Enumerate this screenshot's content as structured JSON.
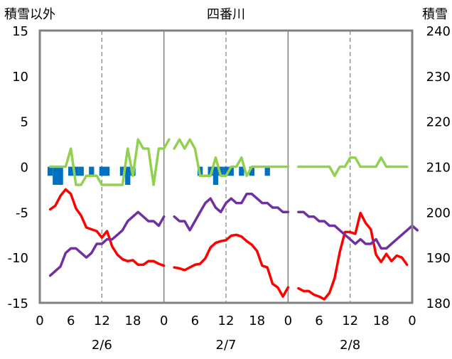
{
  "chart_data": {
    "type": "line",
    "title": "四番川",
    "left_axis_label": "積雪以外",
    "right_axis_label": "積雪",
    "left_ylim": [
      -15,
      15
    ],
    "left_ticks": [
      15,
      10,
      5,
      0,
      -5,
      -10,
      -15
    ],
    "right_ylim": [
      180,
      240
    ],
    "right_ticks": [
      240,
      230,
      220,
      210,
      200,
      190,
      180
    ],
    "x_ticks": [
      {
        "x": 0,
        "label": "0"
      },
      {
        "x": 6,
        "label": "6"
      },
      {
        "x": 12,
        "label": "12"
      },
      {
        "x": 18,
        "label": "18"
      },
      {
        "x": 24,
        "label": "0"
      },
      {
        "x": 30,
        "label": "6"
      },
      {
        "x": 36,
        "label": "12"
      },
      {
        "x": 42,
        "label": "18"
      },
      {
        "x": 48,
        "label": "0"
      },
      {
        "x": 54,
        "label": "6"
      },
      {
        "x": 60,
        "label": "12"
      },
      {
        "x": 66,
        "label": "18"
      },
      {
        "x": 72,
        "label": "0"
      }
    ],
    "date_labels": [
      {
        "x": 12,
        "label": "2/6"
      },
      {
        "x": 36,
        "label": "2/7"
      },
      {
        "x": 60,
        "label": "2/8"
      }
    ],
    "xlim": [
      0,
      72
    ],
    "day_boundaries": [
      24,
      48
    ],
    "grid": "dashed vertical at 12h",
    "series": [
      {
        "color": "#ff0000",
        "axis": "left",
        "segments": [
          [
            [
              2,
              -4.7
            ],
            [
              3,
              -4.3
            ],
            [
              4,
              -3.2
            ],
            [
              5,
              -2.5
            ],
            [
              6,
              -3.0
            ],
            [
              7,
              -4.6
            ],
            [
              8,
              -5.4
            ],
            [
              9,
              -6.7
            ],
            [
              10,
              -6.9
            ],
            [
              11,
              -7.1
            ],
            [
              12,
              -7.8
            ],
            [
              13,
              -7.1
            ],
            [
              14,
              -8.8
            ],
            [
              15,
              -9.7
            ],
            [
              16,
              -10.2
            ],
            [
              17,
              -10.4
            ],
            [
              18,
              -10.3
            ],
            [
              19,
              -10.8
            ],
            [
              20,
              -10.8
            ],
            [
              21,
              -10.4
            ],
            [
              22,
              -10.4
            ],
            [
              23,
              -10.7
            ],
            [
              24,
              -10.9
            ]
          ],
          [
            [
              26,
              -11.1
            ],
            [
              27,
              -11.2
            ],
            [
              28,
              -11.4
            ],
            [
              29,
              -11.1
            ],
            [
              30,
              -10.8
            ],
            [
              31,
              -10.7
            ],
            [
              32,
              -10.1
            ],
            [
              33,
              -8.9
            ],
            [
              34,
              -8.4
            ],
            [
              35,
              -8.2
            ],
            [
              36,
              -8.1
            ],
            [
              37,
              -7.6
            ],
            [
              38,
              -7.5
            ],
            [
              39,
              -7.7
            ],
            [
              40,
              -8.2
            ],
            [
              41,
              -8.6
            ],
            [
              42,
              -9.3
            ],
            [
              43,
              -10.9
            ],
            [
              44,
              -11.1
            ],
            [
              45,
              -12.9
            ],
            [
              46,
              -13.3
            ],
            [
              47,
              -14.3
            ],
            [
              48,
              -13.3
            ]
          ],
          [
            [
              50,
              -13.4
            ],
            [
              51,
              -13.7
            ],
            [
              52,
              -13.7
            ],
            [
              53,
              -14.1
            ],
            [
              54,
              -14.3
            ],
            [
              55,
              -14.6
            ],
            [
              56,
              -13.9
            ],
            [
              57,
              -12.3
            ],
            [
              58,
              -9.4
            ],
            [
              59,
              -7.2
            ],
            [
              60,
              -7.2
            ],
            [
              61,
              -7.4
            ],
            [
              62,
              -5.1
            ],
            [
              63,
              -6.2
            ],
            [
              64,
              -6.9
            ],
            [
              65,
              -9.7
            ],
            [
              66,
              -10.5
            ],
            [
              67,
              -9.6
            ],
            [
              68,
              -10.4
            ],
            [
              69,
              -9.8
            ],
            [
              70,
              -10.0
            ],
            [
              71,
              -10.8
            ]
          ]
        ]
      },
      {
        "color": "#92d050",
        "axis": "left",
        "segments": [
          [
            [
              2,
              0
            ],
            [
              3,
              0
            ],
            [
              4,
              0
            ],
            [
              5,
              0
            ],
            [
              6,
              2
            ],
            [
              7,
              -2
            ],
            [
              8,
              -2
            ],
            [
              9,
              -1
            ],
            [
              10,
              -1
            ],
            [
              11,
              -1
            ],
            [
              12,
              -2
            ],
            [
              13,
              -2
            ],
            [
              14,
              -2
            ],
            [
              15,
              -2
            ],
            [
              16,
              -2
            ],
            [
              17,
              2
            ],
            [
              18,
              -1
            ],
            [
              19,
              3
            ],
            [
              20,
              2
            ],
            [
              21,
              2
            ],
            [
              22,
              -2
            ],
            [
              23,
              2
            ],
            [
              24,
              2
            ],
            [
              25,
              3
            ]
          ],
          [
            [
              26,
              2
            ],
            [
              27,
              3
            ],
            [
              28,
              2
            ],
            [
              29,
              3
            ],
            [
              30,
              2
            ],
            [
              31,
              -1
            ],
            [
              32,
              -1
            ],
            [
              33,
              -1
            ],
            [
              34,
              1
            ],
            [
              35,
              -1
            ],
            [
              36,
              -1
            ],
            [
              37,
              0
            ],
            [
              38,
              0
            ],
            [
              39,
              1
            ],
            [
              40,
              -1
            ],
            [
              41,
              0
            ],
            [
              42,
              0
            ],
            [
              43,
              0
            ],
            [
              44,
              0
            ],
            [
              45,
              0
            ],
            [
              46,
              0
            ],
            [
              47,
              0
            ],
            [
              48,
              0
            ]
          ],
          [
            [
              50,
              0
            ],
            [
              51,
              0
            ],
            [
              52,
              0
            ],
            [
              53,
              0
            ],
            [
              54,
              0
            ],
            [
              55,
              0
            ],
            [
              56,
              0
            ],
            [
              57,
              -1
            ],
            [
              58,
              0
            ],
            [
              59,
              0
            ],
            [
              60,
              1
            ],
            [
              61,
              1
            ],
            [
              62,
              0
            ],
            [
              63,
              0
            ],
            [
              64,
              0
            ],
            [
              65,
              0
            ],
            [
              66,
              1
            ],
            [
              67,
              0
            ],
            [
              68,
              0
            ],
            [
              69,
              0
            ],
            [
              70,
              0
            ],
            [
              71,
              0
            ]
          ]
        ]
      },
      {
        "color": "#7030a0",
        "axis": "right",
        "segments": [
          [
            [
              2,
              186
            ],
            [
              3,
              187
            ],
            [
              4,
              188
            ],
            [
              5,
              191
            ],
            [
              6,
              192
            ],
            [
              7,
              192
            ],
            [
              8,
              191
            ],
            [
              9,
              190
            ],
            [
              10,
              191
            ],
            [
              11,
              193
            ],
            [
              12,
              193
            ],
            [
              13,
              194
            ],
            [
              14,
              194
            ],
            [
              15,
              195
            ],
            [
              16,
              196
            ],
            [
              17,
              198
            ],
            [
              18,
              199
            ],
            [
              19,
              200
            ],
            [
              20,
              199
            ],
            [
              21,
              198
            ],
            [
              22,
              198
            ],
            [
              23,
              197
            ],
            [
              24,
              199
            ]
          ],
          [
            [
              26,
              199
            ],
            [
              27,
              198
            ],
            [
              28,
              198
            ],
            [
              29,
              196
            ],
            [
              30,
              198
            ],
            [
              31,
              200
            ],
            [
              32,
              202
            ],
            [
              33,
              203
            ],
            [
              34,
              201
            ],
            [
              35,
              200
            ],
            [
              36,
              202
            ],
            [
              37,
              203
            ],
            [
              38,
              202
            ],
            [
              39,
              202
            ],
            [
              40,
              204
            ],
            [
              41,
              204
            ],
            [
              42,
              203
            ],
            [
              43,
              202
            ],
            [
              44,
              202
            ],
            [
              45,
              201
            ],
            [
              46,
              201
            ],
            [
              47,
              200
            ],
            [
              48,
              200
            ]
          ],
          [
            [
              50,
              200
            ],
            [
              51,
              200
            ],
            [
              52,
              199
            ],
            [
              53,
              199
            ],
            [
              54,
              198
            ],
            [
              55,
              198
            ],
            [
              56,
              197
            ],
            [
              57,
              197
            ],
            [
              58,
              196
            ],
            [
              59,
              195
            ],
            [
              60,
              194
            ],
            [
              61,
              193
            ],
            [
              62,
              194
            ],
            [
              63,
              193
            ],
            [
              64,
              193
            ],
            [
              65,
              194
            ],
            [
              66,
              192
            ],
            [
              67,
              192
            ],
            [
              68,
              193
            ],
            [
              69,
              194
            ],
            [
              70,
              195
            ],
            [
              71,
              196
            ],
            [
              72,
              197
            ],
            [
              73,
              196
            ]
          ]
        ]
      }
    ],
    "bars": {
      "color": "#0070c0",
      "axis": "left",
      "points": [
        [
          2,
          -1
        ],
        [
          3,
          -2
        ],
        [
          4,
          -2
        ],
        [
          6,
          -1
        ],
        [
          7,
          -1
        ],
        [
          8,
          -1
        ],
        [
          10,
          -1
        ],
        [
          12,
          -1
        ],
        [
          13,
          -1
        ],
        [
          16,
          -1
        ],
        [
          17,
          -2
        ],
        [
          18,
          -1
        ],
        [
          31,
          -1
        ],
        [
          33,
          -1
        ],
        [
          34,
          -2
        ],
        [
          35,
          -1
        ],
        [
          36,
          -1
        ],
        [
          37,
          -1
        ],
        [
          39,
          -1
        ],
        [
          41,
          -1
        ],
        [
          44,
          -1
        ]
      ]
    }
  }
}
